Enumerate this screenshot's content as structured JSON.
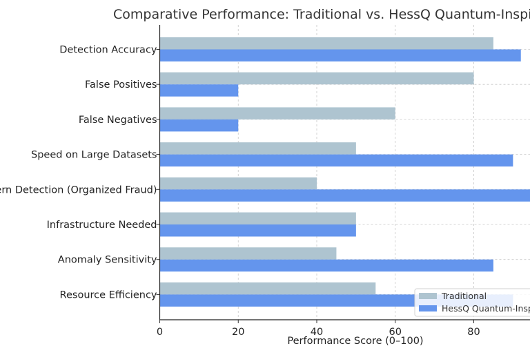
{
  "chart_data": {
    "type": "bar",
    "orientation": "horizontal",
    "title": "Comparative Performance: Traditional vs. HessQ Quantum-Inspired",
    "xlabel": "Performance Score (0–100)",
    "ylabel": "",
    "xlim": [
      0,
      100
    ],
    "xticks": [
      "0",
      "20",
      "40",
      "60",
      "80"
    ],
    "grid": true,
    "legend_position": "bottom-right",
    "categories": [
      "Detection Accuracy",
      "False Positives",
      "False Negatives",
      "Speed on Large Datasets",
      "Pattern Detection (Organized Fraud)",
      "Infrastructure Needed",
      "Anomaly Sensitivity",
      "Resource Efficiency"
    ],
    "series": [
      {
        "name": "Traditional",
        "color": "#aec4d0",
        "values": [
          85,
          80,
          60,
          50,
          40,
          50,
          45,
          55
        ]
      },
      {
        "name": "HessQ Quantum-Inspired",
        "color": "#6495ed",
        "values": [
          92,
          20,
          20,
          90,
          95,
          50,
          85,
          90
        ]
      }
    ]
  }
}
